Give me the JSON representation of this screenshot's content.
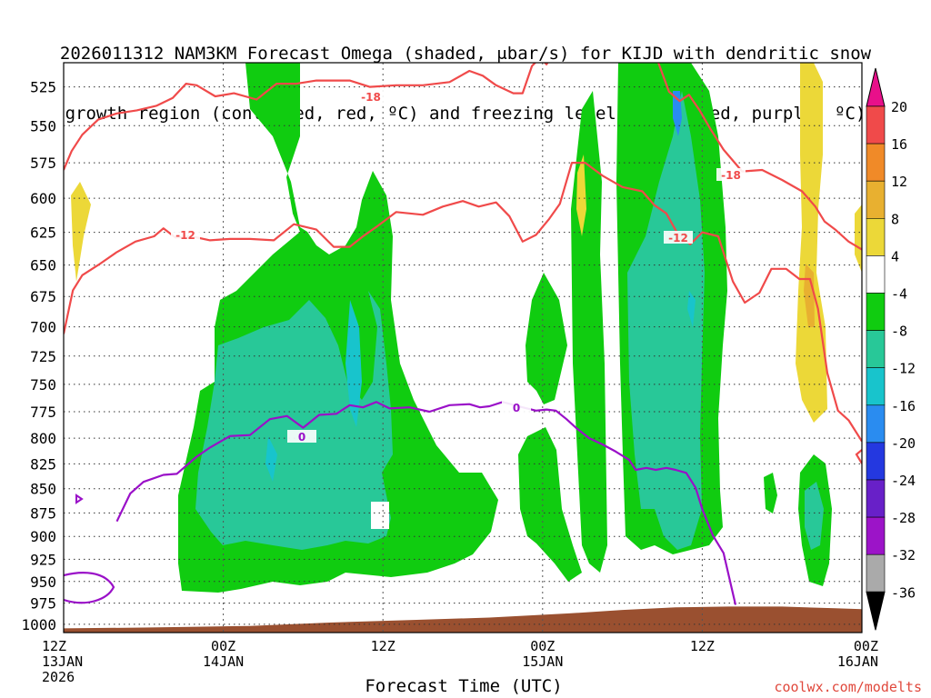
{
  "title": {
    "line1": "2026011312 NAM3KM Forecast Omega (shaded, μbar/s) for KIJD with dendritic snow",
    "line2": "growth region (contoured, red, ºC) and freezing level (contoured, purple, ºC)"
  },
  "xlabel": "Forecast Time (UTC)",
  "credit": "coolwx.com/modelts",
  "chart_data": {
    "type": "heatmap",
    "title": "2026011312 NAM3KM Forecast Omega (shaded, μbar/s) for KIJD with dendritic snow growth region (contoured, red, ºC) and freezing level (contoured, purple, ºC)",
    "xlabel": "Forecast Time (UTC)",
    "ylabel": "",
    "x_range_hours": [
      0,
      60
    ],
    "y_range_mb": [
      1010,
      510
    ],
    "y_ticks": [
      "525",
      "550",
      "575",
      "600",
      "625",
      "650",
      "675",
      "700",
      "725",
      "750",
      "775",
      "800",
      "825",
      "850",
      "875",
      "900",
      "925",
      "950",
      "975",
      "1000"
    ],
    "x_ticks": [
      {
        "hour": 0,
        "lines": [
          "12Z",
          "13JAN",
          "2026"
        ]
      },
      {
        "hour": 12,
        "lines": [
          "00Z",
          "14JAN"
        ]
      },
      {
        "hour": 24,
        "lines": [
          "12Z"
        ]
      },
      {
        "hour": 36,
        "lines": [
          "00Z",
          "15JAN"
        ]
      },
      {
        "hour": 48,
        "lines": [
          "12Z"
        ]
      },
      {
        "hour": 60,
        "lines": [
          "00Z",
          "16JAN"
        ]
      }
    ],
    "grid": true,
    "colorbar": {
      "ticks": [
        "20",
        "16",
        "12",
        "8",
        "4",
        "-4",
        "-8",
        "-12",
        "-16",
        "-20",
        "-24",
        "-28",
        "-32",
        "-36"
      ],
      "bins": [
        {
          "range": "16 to 20",
          "color": "#f04a4a"
        },
        {
          "range": "12 to 16",
          "color": "#f08a28"
        },
        {
          "range": "8 to 12",
          "color": "#e8b030"
        },
        {
          "range": "4 to 8",
          "color": "#ecd838"
        },
        {
          "range": "-4 to 4",
          "color": "#ffffff"
        },
        {
          "range": "-8 to -4",
          "color": "#10cc10"
        },
        {
          "range": "-12 to -8",
          "color": "#28c898"
        },
        {
          "range": "-16 to -12",
          "color": "#18c4cc"
        },
        {
          "range": "-20 to -16",
          "color": "#2a8cf0"
        },
        {
          "range": "-24 to -20",
          "color": "#2438e0"
        },
        {
          "range": "-28 to -24",
          "color": "#6820c8"
        },
        {
          "range": "-32 to -28",
          "color": "#9c14c8"
        },
        {
          "range": "-36 to -32",
          "color": "#aaaaaa"
        }
      ],
      "over_color": "#e8108a",
      "under_color": "#000000"
    },
    "contour_labels": {
      "dendritic": [
        "-18",
        "-12",
        "-18",
        "-12"
      ],
      "freezing": [
        "0",
        "0"
      ]
    },
    "series": [
      {
        "name": "-18",
        "color": "#f04a4a",
        "x_hours": [
          0,
          0.6,
          1.4,
          2.6,
          4,
          5.5,
          7,
          8.2,
          9.2,
          10,
          11.4,
          12.8,
          14.5,
          16,
          17.5,
          19,
          20,
          21.5,
          23,
          25,
          27,
          29,
          30.5,
          31.5,
          32.5,
          33.8,
          34.5,
          35.2,
          35.8,
          36.3,
          36.8,
          37.2,
          37.5,
          38,
          38.7,
          39.4,
          40.2,
          41.2,
          42.5,
          43.7,
          44.7,
          45.5,
          46.3,
          47,
          47.8,
          48.6,
          49.6,
          51,
          52.5,
          54,
          55.5,
          56.5,
          57.2,
          58,
          59,
          60
        ],
        "y_mb": [
          580,
          567,
          556,
          546,
          542,
          540,
          537,
          532,
          523,
          524,
          531,
          529,
          533,
          523,
          523,
          521,
          521,
          521,
          525,
          524,
          524,
          522,
          515,
          518,
          524,
          529,
          529,
          512,
          507,
          511,
          503,
          504,
          503,
          500,
          502,
          498,
          496,
          498,
          500,
          501,
          510,
          528,
          534,
          530,
          540,
          552,
          566,
          581,
          580,
          587,
          595,
          606,
          617,
          623,
          632,
          638
        ]
      },
      {
        "name": "-12",
        "color": "#f04a4a",
        "x_hours": [
          0,
          0.7,
          1.4,
          2.6,
          4,
          5.4,
          6.8,
          7.5,
          8.4,
          9.6,
          11,
          12.5,
          14,
          15.8,
          17.3,
          19,
          20.3,
          21.5,
          22.5,
          23.5,
          25,
          27,
          28.5,
          30,
          31.2,
          32.5,
          33.5,
          34.5,
          35.5,
          36.5,
          37.3,
          38.2,
          39.2,
          40.5,
          42,
          43.5,
          44.4,
          45.3,
          46.2,
          47.1,
          48,
          49.2,
          50.3,
          51.2,
          52.3,
          53.2,
          54.3,
          55.3,
          56.1,
          56.7,
          57.4,
          58.2,
          59,
          60
        ],
        "y_mb": [
          706,
          670,
          658,
          650,
          640,
          632,
          628,
          622,
          629,
          628,
          631,
          630,
          630,
          631,
          619,
          623,
          636,
          636,
          628,
          621,
          610,
          612,
          606,
          602,
          606,
          603,
          613,
          632,
          627,
          615,
          604,
          575,
          575,
          584,
          592,
          595,
          605,
          611,
          627,
          634,
          625,
          628,
          663,
          680,
          672,
          653,
          653,
          661,
          661,
          685,
          740,
          774,
          783,
          803
        ]
      },
      {
        "name": "0",
        "color": "#9a10c8",
        "x_hours": [
          4,
          5,
          6,
          7.5,
          8.5,
          10,
          11,
          12.5,
          14,
          15.5,
          16.8,
          18,
          19.2,
          20.5,
          21.5,
          22.5,
          23.5,
          24.5,
          26,
          27.5,
          29,
          30.5,
          31.3,
          32,
          33,
          34.5,
          35.5,
          36.3,
          37,
          37.8,
          38.5,
          39.5,
          40.5,
          41.5,
          42.5,
          43,
          43.8,
          44.5,
          45.3,
          46,
          46.8,
          47.5,
          48,
          48.8,
          49.6,
          50.5
        ],
        "y_mb": [
          884,
          855,
          843,
          836,
          835,
          818,
          809,
          798,
          797,
          782,
          779,
          790,
          778,
          777,
          769,
          771,
          766,
          772,
          771,
          775,
          769,
          768,
          771,
          770,
          766,
          771,
          774,
          773,
          774,
          782,
          790,
          800,
          806,
          813,
          821,
          831,
          829,
          831,
          829,
          831,
          834,
          849,
          871,
          899,
          918,
          977
        ]
      }
    ],
    "terrain": {
      "color": "#9a5030",
      "x_hours": [
        0,
        6,
        10,
        14,
        20,
        26,
        32,
        38,
        42,
        46,
        50,
        54,
        58,
        60
      ],
      "y_mb": [
        1005,
        1004,
        1003,
        1002,
        998,
        995,
        992,
        987,
        983,
        980,
        979,
        979,
        981,
        982
      ]
    }
  }
}
